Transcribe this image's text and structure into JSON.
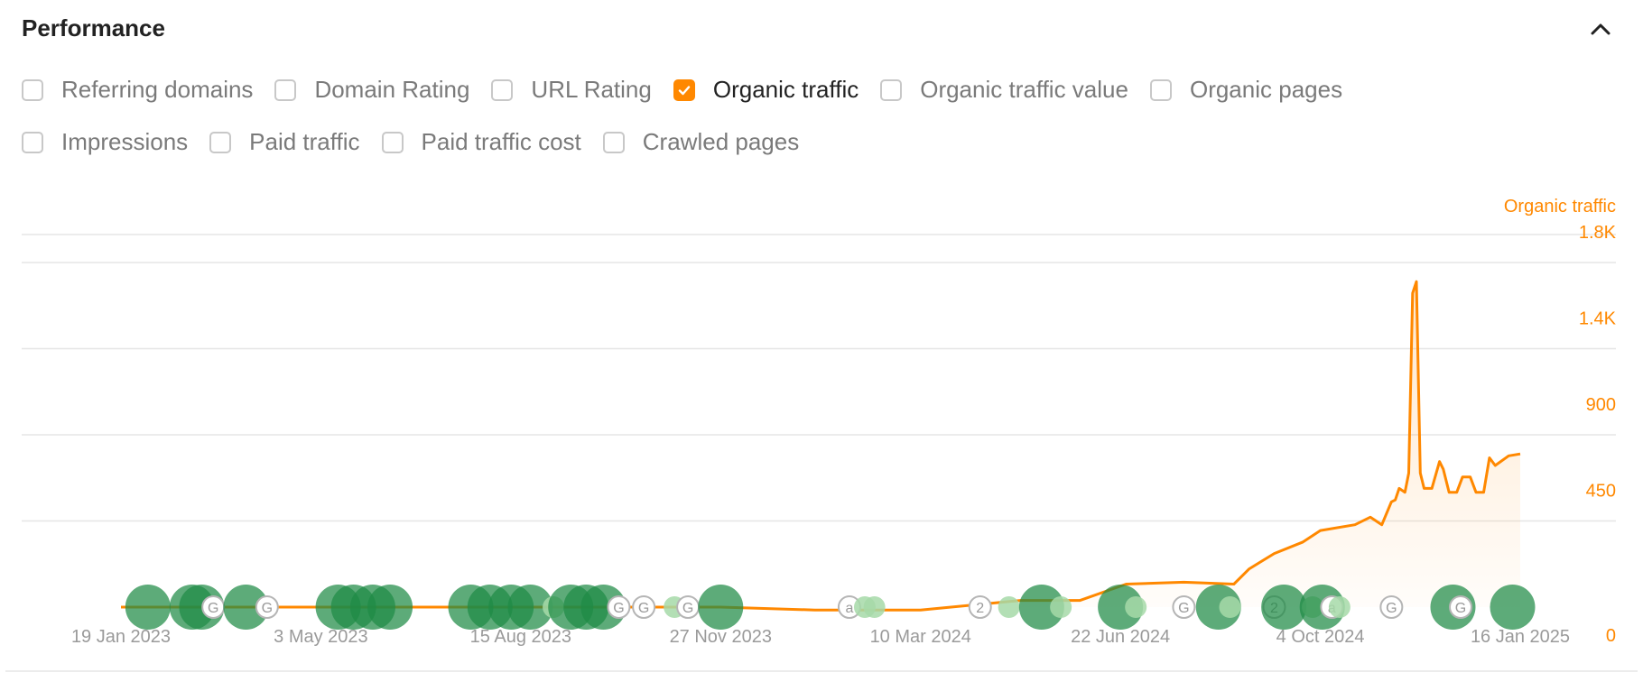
{
  "panel": {
    "title": "Performance",
    "collapse_icon": "chevron-up-icon"
  },
  "options": [
    {
      "label": "Referring domains",
      "checked": false
    },
    {
      "label": "Domain Rating",
      "checked": false
    },
    {
      "label": "URL Rating",
      "checked": false
    },
    {
      "label": "Organic traffic",
      "checked": true
    },
    {
      "label": "Organic traffic value",
      "checked": false
    },
    {
      "label": "Organic pages",
      "checked": false
    },
    {
      "label": "Impressions",
      "checked": false
    },
    {
      "label": "Paid traffic",
      "checked": false
    },
    {
      "label": "Paid traffic cost",
      "checked": false
    },
    {
      "label": "Crawled pages",
      "checked": false
    }
  ],
  "colors": {
    "accent": "#ff8800",
    "marker_green": "#1e8a45",
    "marker_green_light": "#a6d9a8",
    "grid": "#e6e6e6",
    "axis_text": "#8c8c8c"
  },
  "chart_data": {
    "type": "area",
    "series": [
      {
        "name": "Organic traffic",
        "x": [
          "2023-01-19",
          "2023-03-15",
          "2023-05-03",
          "2023-06-20",
          "2023-08-15",
          "2023-10-01",
          "2023-11-27",
          "2024-01-15",
          "2024-03-10",
          "2024-05-01",
          "2024-06-01",
          "2024-06-25",
          "2024-07-25",
          "2024-08-20",
          "2024-08-28",
          "2024-09-10",
          "2024-09-25",
          "2024-10-04",
          "2024-10-22",
          "2024-10-30",
          "2024-11-05",
          "2024-11-10",
          "2024-11-12",
          "2024-11-14",
          "2024-11-17",
          "2024-11-19",
          "2024-11-21",
          "2024-11-23",
          "2024-11-25",
          "2024-11-27",
          "2024-12-01",
          "2024-12-05",
          "2024-12-07",
          "2024-12-10",
          "2024-12-14",
          "2024-12-17",
          "2024-12-21",
          "2024-12-24",
          "2024-12-28",
          "2024-12-31",
          "2025-01-03",
          "2025-01-10",
          "2025-01-16"
        ],
        "y": [
          0,
          0,
          0,
          0,
          0,
          0,
          0,
          -15,
          -15,
          35,
          35,
          120,
          130,
          120,
          200,
          280,
          340,
          400,
          430,
          470,
          430,
          550,
          560,
          620,
          600,
          700,
          1640,
          1700,
          700,
          620,
          620,
          760,
          720,
          600,
          600,
          680,
          680,
          600,
          600,
          780,
          740,
          790,
          800
        ]
      }
    ],
    "x_ticks": [
      "19 Jan 2023",
      "3 May 2023",
      "15 Aug 2023",
      "27 Nov 2023",
      "10 Mar 2024",
      "22 Jun 2024",
      "4 Oct 2024",
      "16 Jan 2025"
    ],
    "y_ticks": [
      "0",
      "450",
      "900",
      "1.4K",
      "1.8K"
    ],
    "y_axis_title": "Organic traffic",
    "ylim": [
      0,
      1800
    ],
    "grid": true,
    "y_axis_position": "right",
    "event_markers": [
      {
        "x": "2023-02-02",
        "kind": "big"
      },
      {
        "x": "2023-02-25",
        "kind": "big"
      },
      {
        "x": "2023-03-02",
        "kind": "big"
      },
      {
        "x": "2023-03-08",
        "kind": "google"
      },
      {
        "x": "2023-03-25",
        "kind": "big"
      },
      {
        "x": "2023-04-05",
        "kind": "google"
      },
      {
        "x": "2023-05-12",
        "kind": "big"
      },
      {
        "x": "2023-05-20",
        "kind": "big"
      },
      {
        "x": "2023-05-30",
        "kind": "big"
      },
      {
        "x": "2023-06-08",
        "kind": "big"
      },
      {
        "x": "2023-07-20",
        "kind": "big"
      },
      {
        "x": "2023-07-30",
        "kind": "big"
      },
      {
        "x": "2023-08-10",
        "kind": "big"
      },
      {
        "x": "2023-08-20",
        "kind": "big"
      },
      {
        "x": "2023-09-01",
        "kind": "small"
      },
      {
        "x": "2023-09-10",
        "kind": "big"
      },
      {
        "x": "2023-09-18",
        "kind": "big"
      },
      {
        "x": "2023-09-27",
        "kind": "big"
      },
      {
        "x": "2023-10-05",
        "kind": "google"
      },
      {
        "x": "2023-10-18",
        "kind": "google"
      },
      {
        "x": "2023-11-03",
        "kind": "small"
      },
      {
        "x": "2023-11-10",
        "kind": "google"
      },
      {
        "x": "2023-11-27",
        "kind": "big"
      },
      {
        "x": "2024-02-02",
        "kind": "amazon"
      },
      {
        "x": "2024-02-10",
        "kind": "small"
      },
      {
        "x": "2024-02-15",
        "kind": "small"
      },
      {
        "x": "2024-04-10",
        "kind": "numbered",
        "label": "2"
      },
      {
        "x": "2024-04-25",
        "kind": "small"
      },
      {
        "x": "2024-05-12",
        "kind": "big"
      },
      {
        "x": "2024-05-22",
        "kind": "small"
      },
      {
        "x": "2024-06-22",
        "kind": "big"
      },
      {
        "x": "2024-06-30",
        "kind": "small"
      },
      {
        "x": "2024-07-25",
        "kind": "google"
      },
      {
        "x": "2024-08-12",
        "kind": "big"
      },
      {
        "x": "2024-08-18",
        "kind": "small"
      },
      {
        "x": "2024-09-10",
        "kind": "numbered",
        "label": "2"
      },
      {
        "x": "2024-09-15",
        "kind": "big"
      },
      {
        "x": "2024-09-30",
        "kind": "small"
      },
      {
        "x": "2024-10-05",
        "kind": "big"
      },
      {
        "x": "2024-10-10",
        "kind": "amazon"
      },
      {
        "x": "2024-10-14",
        "kind": "small"
      },
      {
        "x": "2024-11-10",
        "kind": "google"
      },
      {
        "x": "2024-12-12",
        "kind": "big"
      },
      {
        "x": "2024-12-16",
        "kind": "google"
      },
      {
        "x": "2025-01-12",
        "kind": "big"
      }
    ]
  }
}
